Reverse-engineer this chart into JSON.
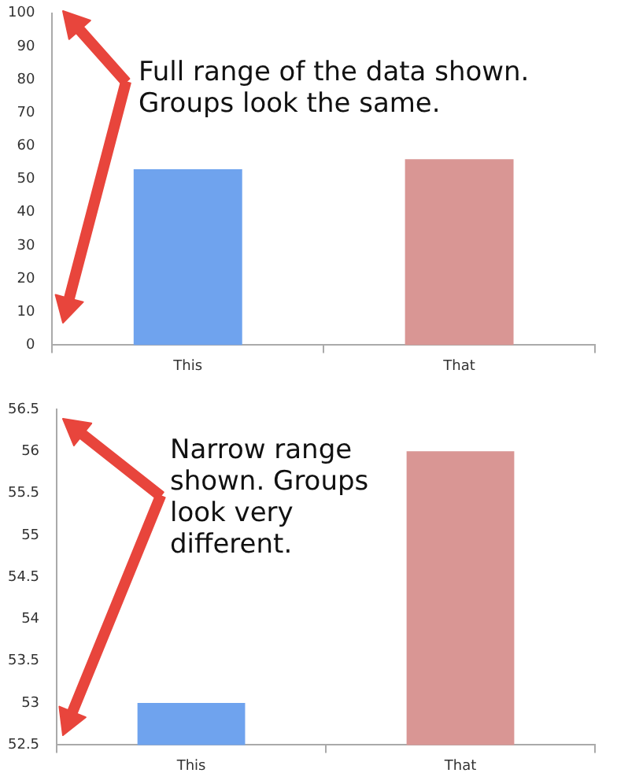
{
  "chart_data": [
    {
      "type": "bar",
      "categories": [
        "This",
        "That"
      ],
      "values": [
        53,
        56
      ],
      "colors": [
        "#6fa3ee",
        "#d99694"
      ],
      "ylim": [
        0,
        100
      ],
      "yticks": [
        0,
        10,
        20,
        30,
        40,
        50,
        60,
        70,
        80,
        90,
        100
      ],
      "annotations": [
        "Full range of the data shown. Groups look the same."
      ]
    },
    {
      "type": "bar",
      "categories": [
        "This",
        "That"
      ],
      "values": [
        53,
        56
      ],
      "colors": [
        "#6fa3ee",
        "#d99694"
      ],
      "ylim": [
        52.5,
        56.5
      ],
      "yticks": [
        52.5,
        53,
        53.5,
        54,
        54.5,
        55,
        55.5,
        56,
        56.5
      ],
      "annotations": [
        "Narrow range shown. Groups look very different."
      ]
    }
  ]
}
